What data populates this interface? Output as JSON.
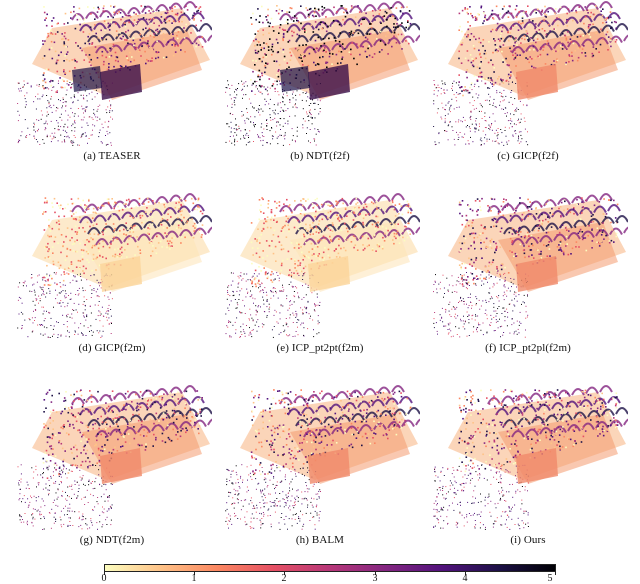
{
  "panels": [
    {
      "id": "a",
      "caption": "(a) TEASER",
      "variant": "misaligned"
    },
    {
      "id": "b",
      "caption": "(b) NDT(f2f)",
      "variant": "misaligned-dark"
    },
    {
      "id": "c",
      "caption": "(c) GICP(f2f)",
      "variant": "aligned"
    },
    {
      "id": "d",
      "caption": "(d) GICP(f2m)",
      "variant": "aligned-light"
    },
    {
      "id": "e",
      "caption": "(e) ICP_pt2pt(f2m)",
      "variant": "aligned-light"
    },
    {
      "id": "f",
      "caption": "(f) ICP_pt2pl(f2m)",
      "variant": "aligned"
    },
    {
      "id": "g",
      "caption": "(g) NDT(f2m)",
      "variant": "aligned"
    },
    {
      "id": "h",
      "caption": "(h) BALM",
      "variant": "aligned"
    },
    {
      "id": "i",
      "caption": "(i) Ours",
      "variant": "aligned"
    }
  ],
  "colorbar": {
    "ticks": [
      "0",
      "1",
      "2",
      "3",
      "4",
      "5"
    ],
    "min": 0,
    "max": 5,
    "colormap": [
      "#fcfdbf",
      "#fec287",
      "#fb8761",
      "#e55064",
      "#b73779",
      "#832681",
      "#51127c",
      "#1d1147",
      "#000004"
    ]
  }
}
